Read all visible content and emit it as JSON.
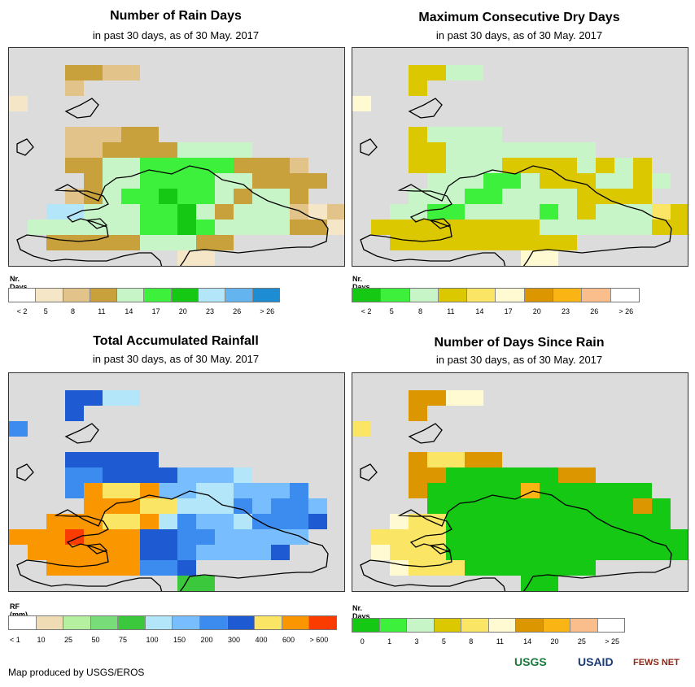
{
  "panels": [
    {
      "id": "rain-days",
      "title": "Number of Rain Days",
      "subtitle": "in past 30 days, as of 30 May. 2017",
      "legend_title": "Nr. Days",
      "legend_colors": [
        "#ffffff",
        "#f5e6c8",
        "#e2c48a",
        "#c8a03c",
        "#c8f5c8",
        "#3cf03c",
        "#14c814",
        "#b4e6fa",
        "#64b4f0",
        "#1e8cd2"
      ],
      "legend_labels": [
        "< 2",
        "5",
        "8",
        "11",
        "14",
        "17",
        "20",
        "23",
        "26",
        "> 26"
      ],
      "label_mode": "center",
      "grid_palette": [
        "#f5e6c8",
        "#e2c48a",
        "#c8a03c",
        "#c8f5c8",
        "#3cf03c",
        "#14c814",
        "#b4e6fa"
      ],
      "grid_rows": [
        "..................",
        "...2211...........",
        "...1..............",
        "0.................",
        "..................",
        "...11122..........",
        "...1122223333.....",
        "...2233444442221..",
        "....2334444332222.",
        "...1234454432332..",
        "..6633344532333101",
        ".33333344543333220",
        "..2222233322......",
        ".........00.......",
        "........0........."
      ]
    },
    {
      "id": "max-dry-days",
      "title": "Maximum Consecutive Dry Days",
      "subtitle": "in past 30 days, as of 30 May. 2017",
      "legend_title": "Nr. Days",
      "legend_colors": [
        "#14c814",
        "#3cf03c",
        "#c8f5c8",
        "#dcc800",
        "#fae664",
        "#fffad2",
        "#dc9600",
        "#fab414",
        "#fabe8c",
        "#ffffff"
      ],
      "legend_labels": [
        "< 2",
        "5",
        "8",
        "11",
        "14",
        "17",
        "20",
        "23",
        "26",
        "> 26"
      ],
      "label_mode": "center",
      "grid_palette": [
        "#14c814",
        "#3cf03c",
        "#c8f5c8",
        "#dcc800",
        "#fae664",
        "#fffad2"
      ],
      "grid_rows": [
        "..................",
        "...3322...........",
        "...3..............",
        "5.................",
        "..................",
        "...32222..........",
        "...3322222222.....",
        "...3322233332323..",
        "....2221123332232.",
        "...2221122223333..",
        "..2211222212322243",
        ".33333333322222233",
        "..3333333333......",
        ".........55.......",
        "........5........."
      ]
    },
    {
      "id": "accum-rainfall",
      "title": "Total Accumulated Rainfall",
      "subtitle": "in past 30 days, as of 30 May. 2017",
      "legend_title": "RF (mm)",
      "legend_colors": [
        "#ffffff",
        "#f0dcb4",
        "#b4f0a0",
        "#78dc78",
        "#3cc83c",
        "#b4e6fa",
        "#78beff",
        "#3c8cf0",
        "#1e5ad2",
        "#fae664",
        "#fa9600",
        "#fa3c00"
      ],
      "legend_labels": [
        "< 1",
        "10",
        "25",
        "50",
        "75",
        "100",
        "150",
        "200",
        "300",
        "400",
        "600",
        "> 600"
      ],
      "label_mode": "edge",
      "grid_palette": [
        "#fa9600",
        "#fae664",
        "#b4e6fa",
        "#78beff",
        "#3c8cf0",
        "#1e5ad2",
        "#3cc83c",
        "#fa3c00"
      ],
      "grid_rows": [
        "..................",
        "...5522...........",
        "...5..............",
        "4.................",
        "..................",
        "...55555..........",
        "...4455553332.....",
        "...4011033223334..",
        "....0001122243443.",
        "..000110243324445.",
        "0007000554433333..",
        ".00000055433335...",
        "..00000445........",
        ".........66.......",
        "........6........."
      ]
    },
    {
      "id": "days-since-rain",
      "title": "Number of Days Since Rain",
      "subtitle": "in past 30 days, as of 30 May. 2017",
      "legend_title": "Nr. Days",
      "legend_colors": [
        "#14c814",
        "#3cf03c",
        "#c8f5c8",
        "#dcc800",
        "#fae664",
        "#fffad2",
        "#dc9600",
        "#fab414",
        "#fabe8c",
        "#ffffff"
      ],
      "legend_labels": [
        "0",
        "1",
        "3",
        "5",
        "8",
        "11",
        "14",
        "20",
        "25",
        "> 25"
      ],
      "label_mode": "center",
      "grid_palette": [
        "#14c814",
        "#fae664",
        "#fffad2",
        "#dc9600",
        "#fab414"
      ],
      "grid_rows": [
        "..................",
        "...3322...........",
        "...3..............",
        "1.................",
        "..................",
        "...31133..........",
        "...3300000033.....",
        "...3000004000000..",
        "....0000000000030.",
        "..211000000000000.",
        ".111100000000000000",
        ".21110000000000000",
        "..21110000000.....",
        ".........00.......",
        "........2........."
      ]
    }
  ],
  "footer": "Map produced by USGS/EROS",
  "logos": [
    "USGS",
    "USAID",
    "FEWS NET"
  ]
}
